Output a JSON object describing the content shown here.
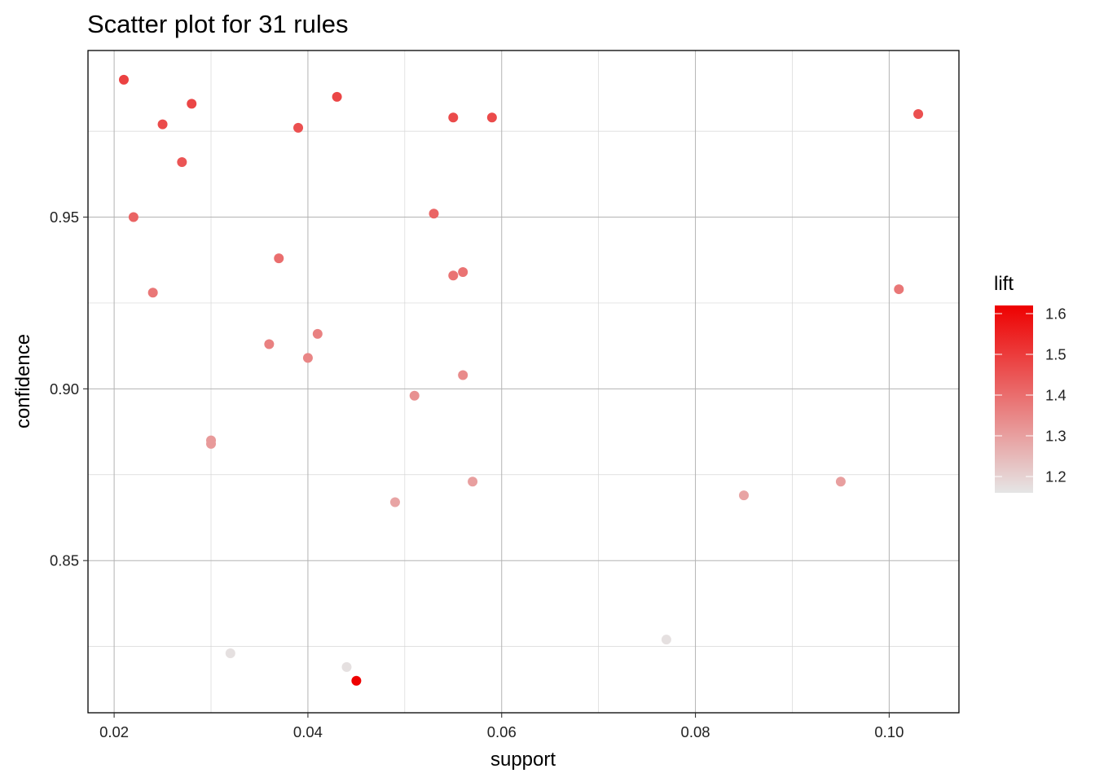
{
  "chart_data": {
    "type": "scatter",
    "title": "Scatter plot for 31 rules",
    "xlabel": "support",
    "ylabel": "confidence",
    "xlim": [
      0.0173,
      0.1072
    ],
    "ylim": [
      0.8057,
      0.9985
    ],
    "x_ticks": [
      {
        "value": 0.02,
        "label": "0.02"
      },
      {
        "value": 0.04,
        "label": "0.04"
      },
      {
        "value": 0.06,
        "label": "0.06"
      },
      {
        "value": 0.08,
        "label": "0.08"
      },
      {
        "value": 0.1,
        "label": "0.10"
      }
    ],
    "y_ticks": [
      {
        "value": 0.85,
        "label": "0.85"
      },
      {
        "value": 0.9,
        "label": "0.90"
      },
      {
        "value": 0.95,
        "label": "0.95"
      }
    ],
    "x_minor": [
      0.03,
      0.05,
      0.07,
      0.09
    ],
    "y_minor": [
      0.825,
      0.875,
      0.925,
      0.975
    ],
    "grid": true,
    "color_scale": {
      "name": "lift",
      "low_color": "#E5E5E5",
      "high_color": "#EE0000",
      "range": [
        1.16,
        1.62
      ],
      "ticks": [
        {
          "value": 1.2,
          "label": "1.2"
        },
        {
          "value": 1.3,
          "label": "1.3"
        },
        {
          "value": 1.4,
          "label": "1.4"
        },
        {
          "value": 1.5,
          "label": "1.5"
        },
        {
          "value": 1.6,
          "label": "1.6"
        }
      ],
      "legend_position": "right"
    },
    "points": [
      {
        "support": 0.021,
        "confidence": 0.99,
        "lift": 1.49
      },
      {
        "support": 0.028,
        "confidence": 0.983,
        "lift": 1.48
      },
      {
        "support": 0.043,
        "confidence": 0.985,
        "lift": 1.48
      },
      {
        "support": 0.025,
        "confidence": 0.977,
        "lift": 1.47
      },
      {
        "support": 0.039,
        "confidence": 0.976,
        "lift": 1.46
      },
      {
        "support": 0.055,
        "confidence": 0.979,
        "lift": 1.47
      },
      {
        "support": 0.059,
        "confidence": 0.979,
        "lift": 1.47
      },
      {
        "support": 0.103,
        "confidence": 0.98,
        "lift": 1.46
      },
      {
        "support": 0.027,
        "confidence": 0.966,
        "lift": 1.45
      },
      {
        "support": 0.022,
        "confidence": 0.95,
        "lift": 1.42
      },
      {
        "support": 0.053,
        "confidence": 0.951,
        "lift": 1.42
      },
      {
        "support": 0.037,
        "confidence": 0.938,
        "lift": 1.4
      },
      {
        "support": 0.056,
        "confidence": 0.934,
        "lift": 1.39
      },
      {
        "support": 0.055,
        "confidence": 0.933,
        "lift": 1.39
      },
      {
        "support": 0.024,
        "confidence": 0.928,
        "lift": 1.38
      },
      {
        "support": 0.101,
        "confidence": 0.929,
        "lift": 1.38
      },
      {
        "support": 0.041,
        "confidence": 0.916,
        "lift": 1.36
      },
      {
        "support": 0.036,
        "confidence": 0.913,
        "lift": 1.36
      },
      {
        "support": 0.04,
        "confidence": 0.909,
        "lift": 1.35
      },
      {
        "support": 0.056,
        "confidence": 0.904,
        "lift": 1.34
      },
      {
        "support": 0.051,
        "confidence": 0.898,
        "lift": 1.33
      },
      {
        "support": 0.03,
        "confidence": 0.885,
        "lift": 1.31
      },
      {
        "support": 0.03,
        "confidence": 0.884,
        "lift": 1.31
      },
      {
        "support": 0.057,
        "confidence": 0.873,
        "lift": 1.3
      },
      {
        "support": 0.095,
        "confidence": 0.873,
        "lift": 1.3
      },
      {
        "support": 0.085,
        "confidence": 0.869,
        "lift": 1.29
      },
      {
        "support": 0.049,
        "confidence": 0.867,
        "lift": 1.29
      },
      {
        "support": 0.077,
        "confidence": 0.827,
        "lift": 1.17
      },
      {
        "support": 0.032,
        "confidence": 0.823,
        "lift": 1.17
      },
      {
        "support": 0.044,
        "confidence": 0.819,
        "lift": 1.17
      },
      {
        "support": 0.045,
        "confidence": 0.815,
        "lift": 1.62
      }
    ]
  }
}
